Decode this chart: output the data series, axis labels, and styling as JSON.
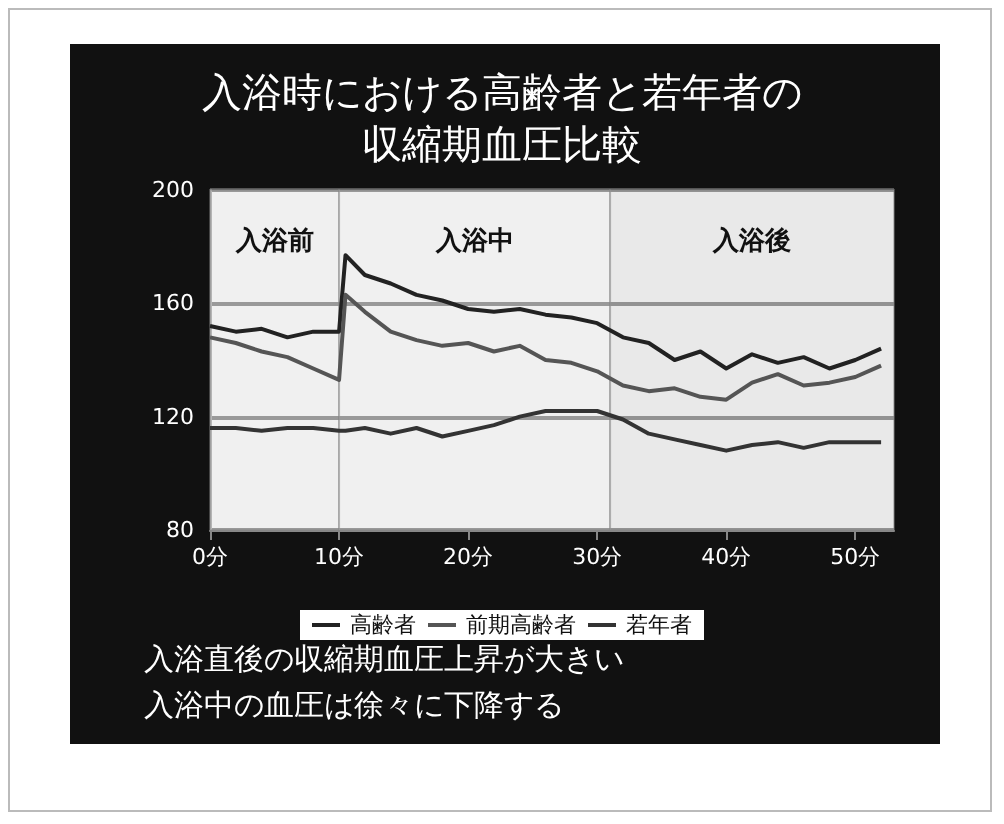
{
  "chart_data": {
    "type": "line",
    "title": "入浴時における高齢者と若年者の収縮期血圧比較",
    "x": [
      0,
      2,
      4,
      6,
      8,
      10,
      10.5,
      12,
      14,
      16,
      18,
      20,
      22,
      24,
      26,
      28,
      30,
      32,
      34,
      36,
      38,
      40,
      42,
      44,
      46,
      48,
      50,
      52
    ],
    "series": [
      {
        "name": "高齢者",
        "color": "#222222",
        "values": [
          152,
          150,
          151,
          148,
          150,
          150,
          177,
          170,
          167,
          163,
          161,
          158,
          157,
          158,
          156,
          155,
          153,
          148,
          146,
          140,
          143,
          137,
          142,
          139,
          141,
          137,
          140,
          144
        ]
      },
      {
        "name": "前期高齢者",
        "color": "#555555",
        "values": [
          148,
          146,
          143,
          141,
          137,
          133,
          163,
          157,
          150,
          147,
          145,
          146,
          143,
          145,
          140,
          139,
          136,
          131,
          129,
          130,
          127,
          126,
          132,
          135,
          131,
          132,
          134,
          138
        ]
      },
      {
        "name": "若年者",
        "color": "#333333",
        "values": [
          116,
          116,
          115,
          116,
          116,
          115,
          115,
          116,
          114,
          116,
          113,
          115,
          117,
          120,
          122,
          122,
          122,
          119,
          114,
          112,
          110,
          108,
          110,
          111,
          109,
          111,
          111,
          111
        ]
      }
    ],
    "xlim": [
      0,
      53
    ],
    "xticks": [
      {
        "value": 0,
        "label": "0分"
      },
      {
        "value": 10,
        "label": "10分"
      },
      {
        "value": 20,
        "label": "20分"
      },
      {
        "value": 30,
        "label": "30分"
      },
      {
        "value": 40,
        "label": "40分"
      },
      {
        "value": 50,
        "label": "50分"
      }
    ],
    "ylim": [
      80,
      200
    ],
    "yticks": [
      80,
      120,
      160,
      200
    ],
    "grid": "y",
    "legend": "bottom",
    "marker": "none",
    "bands": [
      {
        "axis": "x",
        "from": 0,
        "to": 10,
        "label": "入浴前",
        "color": "#eeeeee"
      },
      {
        "axis": "x",
        "from": 10,
        "to": 31,
        "label": "入浴中",
        "color": "#eeeeee"
      },
      {
        "axis": "x",
        "from": 31,
        "to": 53,
        "label": "入浴後",
        "color": "#dddddd"
      }
    ],
    "annotations": [
      "入浴直後の収縮期血圧上昇が大きい",
      "入浴中の血圧は徐々に下降する"
    ]
  }
}
